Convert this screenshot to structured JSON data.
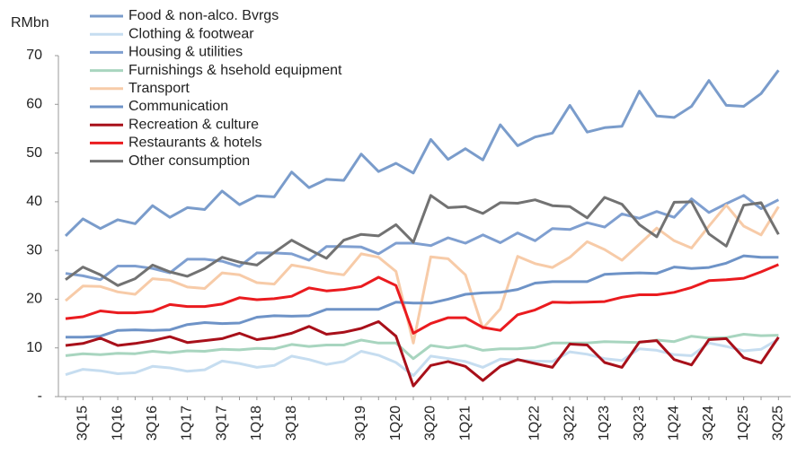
{
  "chart_data": {
    "type": "line",
    "y_label": "RMbn",
    "legend": "upper left",
    "categories": [
      null,
      "3Q15",
      null,
      "1Q16",
      null,
      "3Q16",
      null,
      "1Q17",
      null,
      "3Q17",
      null,
      "1Q18",
      null,
      "3Q18",
      null,
      null,
      null,
      "3Q19",
      null,
      "1Q20",
      null,
      "3Q20",
      null,
      "1Q21",
      null,
      null,
      null,
      "1Q22",
      null,
      "3Q22",
      null,
      "1Q23",
      null,
      "3Q23",
      null,
      "1Q24",
      null,
      "3Q24",
      null,
      "1Q25",
      null,
      "3Q25"
    ],
    "ylim": [
      0,
      70
    ],
    "yticks": [
      {
        "value": 0,
        "label": "-"
      },
      10,
      20,
      30,
      40,
      50,
      60,
      70
    ],
    "series": [
      {
        "name": "Food & non-alco. Bvrgs",
        "color": "#7a9ccb",
        "values": [
          33,
          36.5,
          34.5,
          36.3,
          35.5,
          39.2,
          36.8,
          38.8,
          38.4,
          42.2,
          39.4,
          41.2,
          41,
          46.1,
          42.9,
          44.6,
          44.4,
          49.8,
          46.2,
          47.9,
          45.9,
          52.8,
          48.7,
          50.9,
          48.6,
          55.8,
          51.5,
          53.3,
          54.1,
          59.8,
          54.3,
          55.2,
          55.5,
          62.7,
          57.6,
          57.3,
          59.6,
          64.9,
          59.8,
          59.6,
          62.2,
          67
        ]
      },
      {
        "name": "Clothing & footwear",
        "color": "#c6ddf0",
        "values": [
          4.5,
          5.6,
          5.3,
          4.7,
          4.9,
          6.2,
          5.9,
          5.2,
          5.5,
          7.3,
          6.8,
          6,
          6.4,
          8.3,
          7.6,
          6.6,
          7.2,
          9.3,
          8.5,
          7,
          4.3,
          8.3,
          7.8,
          7.2,
          6,
          7.7,
          7.5,
          7.3,
          7.2,
          9.2,
          8.7,
          7.8,
          7.4,
          9.8,
          9.5,
          8.6,
          8.4,
          11,
          10.3,
          9.4,
          9.7,
          11.8
        ]
      },
      {
        "name": "Housing & utilities",
        "color": "#7f9fd0",
        "values": [
          25.3,
          24.8,
          24,
          26.8,
          26.8,
          26.3,
          25.4,
          28.2,
          28.2,
          27.8,
          26.7,
          29.5,
          29.5,
          29.3,
          28,
          30.8,
          30.8,
          30.7,
          29.3,
          31.5,
          31.5,
          31,
          32.6,
          31.5,
          33.2,
          31.6,
          33.6,
          32,
          34.5,
          34.3,
          35.7,
          34.8,
          37.5,
          36.6,
          38,
          36.8,
          40.6,
          37.8,
          39.6,
          41.3,
          38.6,
          40.4
        ]
      },
      {
        "name": "Furnishings & hsehold equipment",
        "color": "#a8d5bf",
        "values": [
          8.4,
          8.8,
          8.6,
          8.9,
          8.8,
          9.3,
          9,
          9.4,
          9.3,
          9.7,
          9.6,
          9.9,
          9.8,
          10.7,
          10.3,
          10.6,
          10.6,
          11.6,
          11,
          11,
          7.8,
          10.5,
          10,
          10.5,
          9.5,
          9.8,
          9.8,
          10.1,
          11,
          11,
          11,
          11.3,
          11.2,
          11.1,
          11.6,
          11.3,
          12.4,
          12,
          12.1,
          12.8,
          12.5,
          12.6
        ]
      },
      {
        "name": "Transport",
        "color": "#f7cba8",
        "values": [
          19.7,
          22.7,
          22.6,
          21.5,
          21,
          24.2,
          23.9,
          22.5,
          22.2,
          25.4,
          25,
          23.4,
          23.1,
          27,
          26.4,
          25.5,
          25,
          29.3,
          28.6,
          25.7,
          11,
          28.7,
          28.3,
          25,
          14,
          18,
          28.8,
          27.3,
          26.5,
          28.6,
          31.8,
          30.2,
          28,
          31.3,
          34.6,
          32,
          30.5,
          35,
          39.3,
          35,
          33.2,
          39
        ]
      },
      {
        "name": "Communication",
        "color": "#6e93c7",
        "values": [
          12.2,
          12.2,
          12.4,
          13.6,
          13.7,
          13.6,
          13.7,
          14.8,
          15.2,
          15,
          15.1,
          16.3,
          16.6,
          16.5,
          16.6,
          17.9,
          17.9,
          17.9,
          17.9,
          19.4,
          19.2,
          19.2,
          20,
          21,
          21.3,
          21.4,
          22,
          23.3,
          23.6,
          23.6,
          23.6,
          25.1,
          25.3,
          25.4,
          25.3,
          26.6,
          26.3,
          26.5,
          27.4,
          28.9,
          28.6,
          28.6
        ]
      },
      {
        "name": "Recreation & culture",
        "color": "#a8101a",
        "values": [
          10.5,
          10.9,
          12,
          10.5,
          10.9,
          11.5,
          12.3,
          11.1,
          11.5,
          11.9,
          13,
          11.7,
          12.2,
          13,
          14.4,
          12.8,
          13.2,
          14,
          15.4,
          12.4,
          2.2,
          6.4,
          7.2,
          6.2,
          3.3,
          6.2,
          7.6,
          6.8,
          6,
          10.8,
          10.6,
          7,
          6,
          11.2,
          11.5,
          7.6,
          6.5,
          11.7,
          11.9,
          8,
          6.9,
          12.2
        ]
      },
      {
        "name": "Restaurants & hotels",
        "color": "#ea1b1f",
        "values": [
          16,
          16.4,
          17.6,
          17.2,
          17.2,
          17.5,
          18.9,
          18.5,
          18.5,
          19,
          20.3,
          19.9,
          20.1,
          20.6,
          22.3,
          21.7,
          22,
          22.6,
          24.5,
          22.8,
          13,
          15,
          16.2,
          16.2,
          14.2,
          13.6,
          16.8,
          17.8,
          19.4,
          19.3,
          19.4,
          19.5,
          20.4,
          20.9,
          20.9,
          21.4,
          22.4,
          23.8,
          24,
          24.3,
          25.6,
          27.1
        ]
      },
      {
        "name": "Other consumption",
        "color": "#727272",
        "values": [
          24,
          26.6,
          25,
          22.8,
          24.2,
          27,
          25.6,
          24.7,
          26.3,
          28.6,
          27.6,
          27,
          29.6,
          32.1,
          30.2,
          28.4,
          32.1,
          33.3,
          33,
          35.3,
          31.7,
          41.3,
          38.8,
          39,
          37.6,
          39.8,
          39.7,
          40.4,
          39.2,
          39,
          36.7,
          40.9,
          39.5,
          35.3,
          32.8,
          39.9,
          40,
          33.4,
          30.9,
          39.3,
          39.8,
          33.3
        ]
      }
    ]
  }
}
